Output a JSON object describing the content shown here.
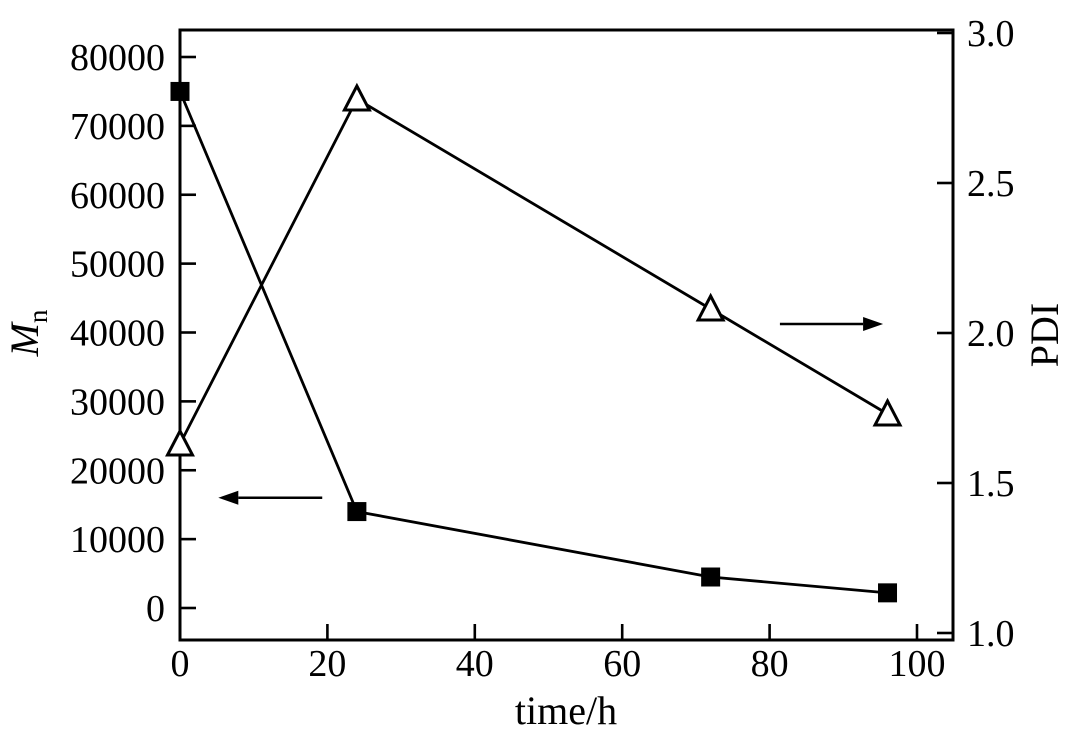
{
  "chart_data": {
    "type": "line",
    "title": "",
    "xlabel": "time/h",
    "ylabel_left_main": "M",
    "ylabel_left_sub": "n",
    "ylabel_right": "PDI",
    "x_ticks": [
      0,
      20,
      40,
      60,
      80,
      100
    ],
    "left_ticks": [
      0,
      10000,
      20000,
      30000,
      40000,
      50000,
      60000,
      70000,
      80000
    ],
    "right_ticks": [
      "1.0",
      "1.5",
      "2.0",
      "2.5",
      "3.0"
    ],
    "xlim": [
      0,
      105
    ],
    "left_ylim": [
      0,
      80000
    ],
    "right_ylim": [
      1.0,
      3.0
    ],
    "grid": false,
    "legend": "none",
    "x_shared": [
      0,
      24,
      72,
      96
    ],
    "series": [
      {
        "name": "Mn",
        "axis": "left",
        "marker": "filled-square",
        "color": "#000000",
        "x": [
          0,
          24,
          72,
          96
        ],
        "values": [
          75000,
          14000,
          4500,
          2200
        ]
      },
      {
        "name": "PDI",
        "axis": "right",
        "marker": "open-triangle",
        "color": "#000000",
        "x": [
          0,
          24,
          72,
          96
        ],
        "values": [
          1.63,
          2.78,
          2.08,
          1.73
        ]
      }
    ],
    "annotations": [
      {
        "type": "arrow",
        "points_to": "left-axis",
        "axis": "left",
        "x_tail": 19.3,
        "x_head": 5.2,
        "y": 16000
      },
      {
        "type": "arrow",
        "points_to": "right-axis",
        "axis": "right",
        "x_tail": 81.4,
        "x_head": 95.4,
        "y": 2.03
      }
    ],
    "colors": {
      "foreground": "#000000",
      "background": "#ffffff"
    }
  }
}
